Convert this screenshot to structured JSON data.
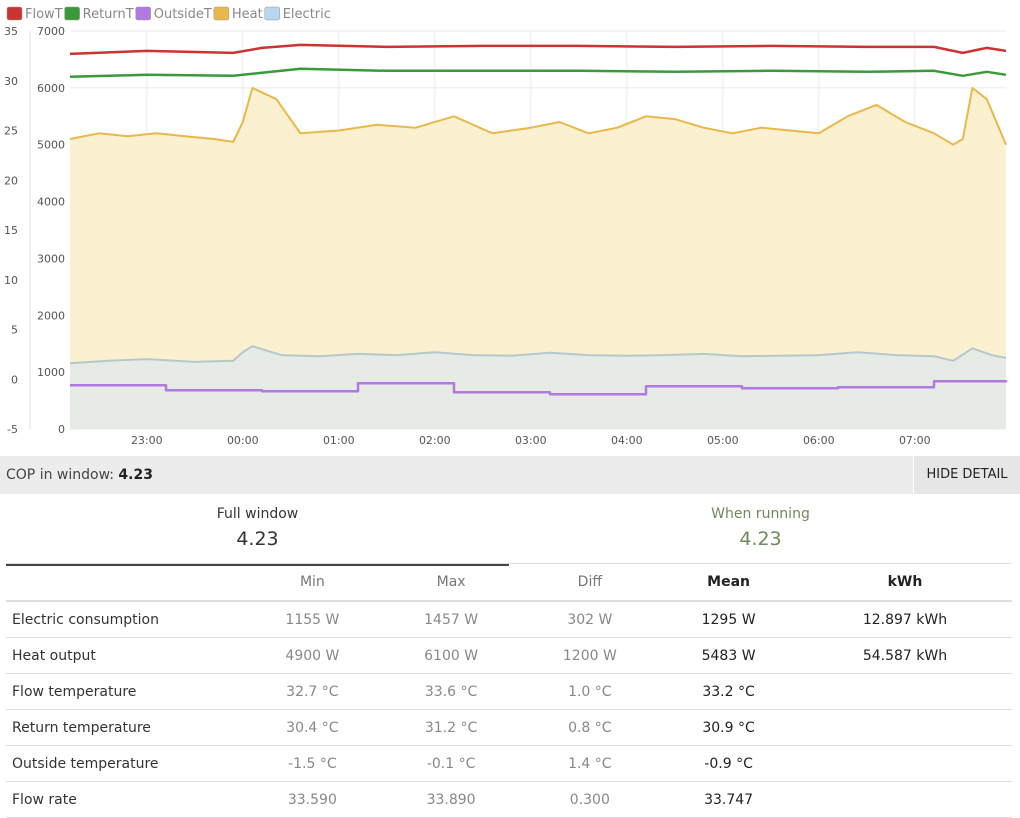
{
  "chart_data": {
    "type": "line",
    "legend": {
      "placement": "top-left",
      "entries": [
        {
          "name": "FlowT",
          "color": "#cc3333"
        },
        {
          "name": "ReturnT",
          "color": "#3a9a3a"
        },
        {
          "name": "OutsideT",
          "color": "#b27ae0"
        },
        {
          "name": "Heat",
          "color": "#e8b84a"
        },
        {
          "name": "Electric",
          "color": "#b8d6ee"
        }
      ]
    },
    "y_left": {
      "ticks": [
        "35",
        "30",
        "25",
        "20",
        "15",
        "10",
        "5",
        "0",
        "-5"
      ],
      "min": -5,
      "max": 35
    },
    "y_right": {
      "ticks": [
        "7000",
        "6000",
        "5000",
        "4000",
        "3000",
        "2000",
        "1000",
        "0"
      ],
      "min": 0,
      "max": 7000
    },
    "x_ticks": [
      "23:00",
      "00:00",
      "01:00",
      "02:00",
      "03:00",
      "04:00",
      "05:00",
      "06:00",
      "07:00"
    ],
    "x_tick_hours": [
      23,
      24,
      25,
      26,
      27,
      28,
      29,
      30,
      31
    ],
    "x_range_hours": [
      22.2,
      31.95
    ],
    "grid": true,
    "series": [
      {
        "name": "Heat",
        "axis": "right",
        "color": "#e8b84a",
        "fill": "#fbf0cf",
        "x": [
          22.2,
          22.5,
          22.8,
          23.1,
          23.4,
          23.7,
          23.9,
          24.0,
          24.1,
          24.35,
          24.6,
          25.0,
          25.4,
          25.8,
          26.2,
          26.6,
          27.0,
          27.3,
          27.6,
          27.9,
          28.2,
          28.5,
          28.8,
          29.1,
          29.4,
          29.7,
          30.0,
          30.3,
          30.6,
          30.9,
          31.2,
          31.4,
          31.5,
          31.6,
          31.75,
          31.95
        ],
        "values": [
          5100,
          5200,
          5150,
          5200,
          5150,
          5100,
          5050,
          5400,
          6000,
          5800,
          5200,
          5250,
          5350,
          5300,
          5500,
          5200,
          5300,
          5400,
          5200,
          5300,
          5500,
          5450,
          5300,
          5200,
          5300,
          5250,
          5200,
          5500,
          5700,
          5400,
          5200,
          5000,
          5100,
          6000,
          5800,
          5000
        ]
      },
      {
        "name": "Electric",
        "axis": "right",
        "color": "#b5c8cc",
        "fill": "#e7ebe6",
        "x": [
          22.2,
          22.6,
          23.0,
          23.5,
          23.9,
          24.0,
          24.1,
          24.4,
          24.8,
          25.2,
          25.6,
          26.0,
          26.4,
          26.8,
          27.2,
          27.6,
          28.0,
          28.4,
          28.8,
          29.2,
          29.6,
          30.0,
          30.4,
          30.8,
          31.2,
          31.4,
          31.6,
          31.8,
          31.95
        ],
        "values": [
          1155,
          1200,
          1230,
          1180,
          1200,
          1350,
          1457,
          1300,
          1280,
          1320,
          1300,
          1350,
          1300,
          1290,
          1340,
          1300,
          1290,
          1300,
          1320,
          1280,
          1290,
          1300,
          1350,
          1300,
          1280,
          1200,
          1420,
          1300,
          1250
        ]
      },
      {
        "name": "FlowT",
        "axis": "left",
        "color": "#cc3333",
        "x": [
          22.2,
          23.0,
          23.9,
          24.2,
          24.6,
          25.5,
          26.5,
          27.5,
          28.5,
          29.5,
          30.5,
          31.2,
          31.5,
          31.75,
          31.95
        ],
        "values": [
          32.7,
          33.0,
          32.8,
          33.3,
          33.6,
          33.4,
          33.5,
          33.5,
          33.4,
          33.5,
          33.4,
          33.4,
          32.8,
          33.3,
          33.0
        ]
      },
      {
        "name": "ReturnT",
        "axis": "left",
        "color": "#3a9a3a",
        "x": [
          22.2,
          23.0,
          23.9,
          24.2,
          24.6,
          25.5,
          26.5,
          27.5,
          28.5,
          29.5,
          30.5,
          31.2,
          31.5,
          31.75,
          31.95
        ],
        "values": [
          30.4,
          30.6,
          30.5,
          30.8,
          31.2,
          31.0,
          31.0,
          31.0,
          30.9,
          31.0,
          30.9,
          31.0,
          30.5,
          30.9,
          30.6
        ]
      },
      {
        "name": "OutsideT",
        "axis": "left",
        "color": "#b27ae0",
        "step": true,
        "x": [
          22.2,
          23.2,
          24.2,
          25.2,
          26.2,
          27.2,
          28.2,
          29.2,
          30.2,
          31.2,
          31.95
        ],
        "values": [
          -0.6,
          -1.1,
          -1.2,
          -0.4,
          -1.3,
          -1.5,
          -0.7,
          -0.9,
          -0.8,
          -0.2,
          -0.1
        ]
      }
    ]
  },
  "cop_bar": {
    "label": "COP in window:",
    "value": "4.23",
    "hide_button": "HIDE DETAIL"
  },
  "summary": {
    "full": {
      "label": "Full window",
      "value": "4.23"
    },
    "running": {
      "label": "When running",
      "value": "4.23"
    }
  },
  "table": {
    "headers": [
      "",
      "Min",
      "Max",
      "Diff",
      "Mean",
      "kWh"
    ],
    "rows": [
      {
        "label": "Electric consumption",
        "min": "1155 W",
        "max": "1457 W",
        "diff": "302 W",
        "mean": "1295 W",
        "kwh": "12.897 kWh"
      },
      {
        "label": "Heat output",
        "min": "4900 W",
        "max": "6100 W",
        "diff": "1200 W",
        "mean": "5483 W",
        "kwh": "54.587 kWh"
      },
      {
        "label": "Flow temperature",
        "min": "32.7 °C",
        "max": "33.6 °C",
        "diff": "1.0 °C",
        "mean": "33.2 °C",
        "kwh": ""
      },
      {
        "label": "Return temperature",
        "min": "30.4 °C",
        "max": "31.2 °C",
        "diff": "0.8 °C",
        "mean": "30.9 °C",
        "kwh": ""
      },
      {
        "label": "Outside temperature",
        "min": "-1.5 °C",
        "max": "-0.1 °C",
        "diff": "1.4 °C",
        "mean": "-0.9 °C",
        "kwh": ""
      },
      {
        "label": "Flow rate",
        "min": "33.590",
        "max": "33.890",
        "diff": "0.300",
        "mean": "33.747",
        "kwh": ""
      }
    ]
  }
}
